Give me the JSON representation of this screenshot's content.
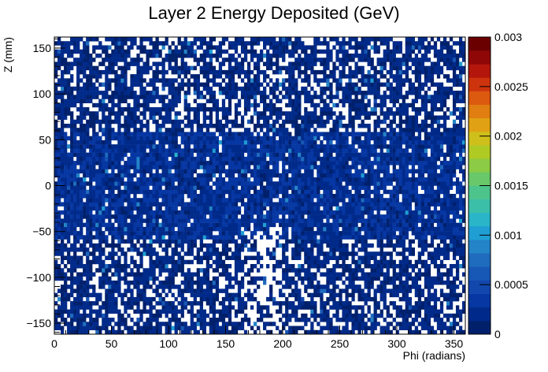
{
  "chart_data": {
    "type": "heatmap",
    "title": "Layer 2 Energy Deposited (GeV)",
    "xlabel": "Phi (radians)",
    "ylabel": "Z (mm)",
    "xlim": [
      0,
      360
    ],
    "ylim": [
      -162,
      162
    ],
    "x_ticks": [
      0,
      50,
      100,
      150,
      200,
      250,
      300,
      350
    ],
    "y_ticks": [
      -150,
      -100,
      -50,
      0,
      50,
      100,
      150
    ],
    "bins": {
      "nx": 130,
      "ny": 72
    },
    "colorbar": {
      "range": [
        0,
        0.003
      ],
      "ticks": [
        {
          "value": 0,
          "label": "0"
        },
        {
          "value": 0.0005,
          "label": "0.0005"
        },
        {
          "value": 0.001,
          "label": "0.001"
        },
        {
          "value": 0.0015,
          "label": "0.0015"
        },
        {
          "value": 0.002,
          "label": "0.002"
        },
        {
          "value": 0.0025,
          "label": "0.0025"
        },
        {
          "value": 0.003,
          "label": "0.003"
        }
      ],
      "colors": [
        "#00206c",
        "#002a8a",
        "#0637a3",
        "#1247ad",
        "#1757b5",
        "#1f6bbd",
        "#2384c7",
        "#1f9ed3",
        "#2ab5c9",
        "#3cbfa9",
        "#4cc48c",
        "#68c86a",
        "#8bcb45",
        "#b0ca24",
        "#cebf1b",
        "#e0a214",
        "#e07e11",
        "#dc5910",
        "#cd340e",
        "#b4160c",
        "#8f0707",
        "#6b0000"
      ]
    },
    "distribution": {
      "typical_value": 0.0002,
      "dense_band_z": [
        -60,
        60
      ],
      "band_value": 0.0003,
      "empty_fraction_band": 0.08,
      "empty_fraction_edges": 0.28,
      "low_coverage_region": {
        "phi": [
          165,
          200
        ],
        "z": [
          -162,
          -40
        ]
      }
    }
  }
}
